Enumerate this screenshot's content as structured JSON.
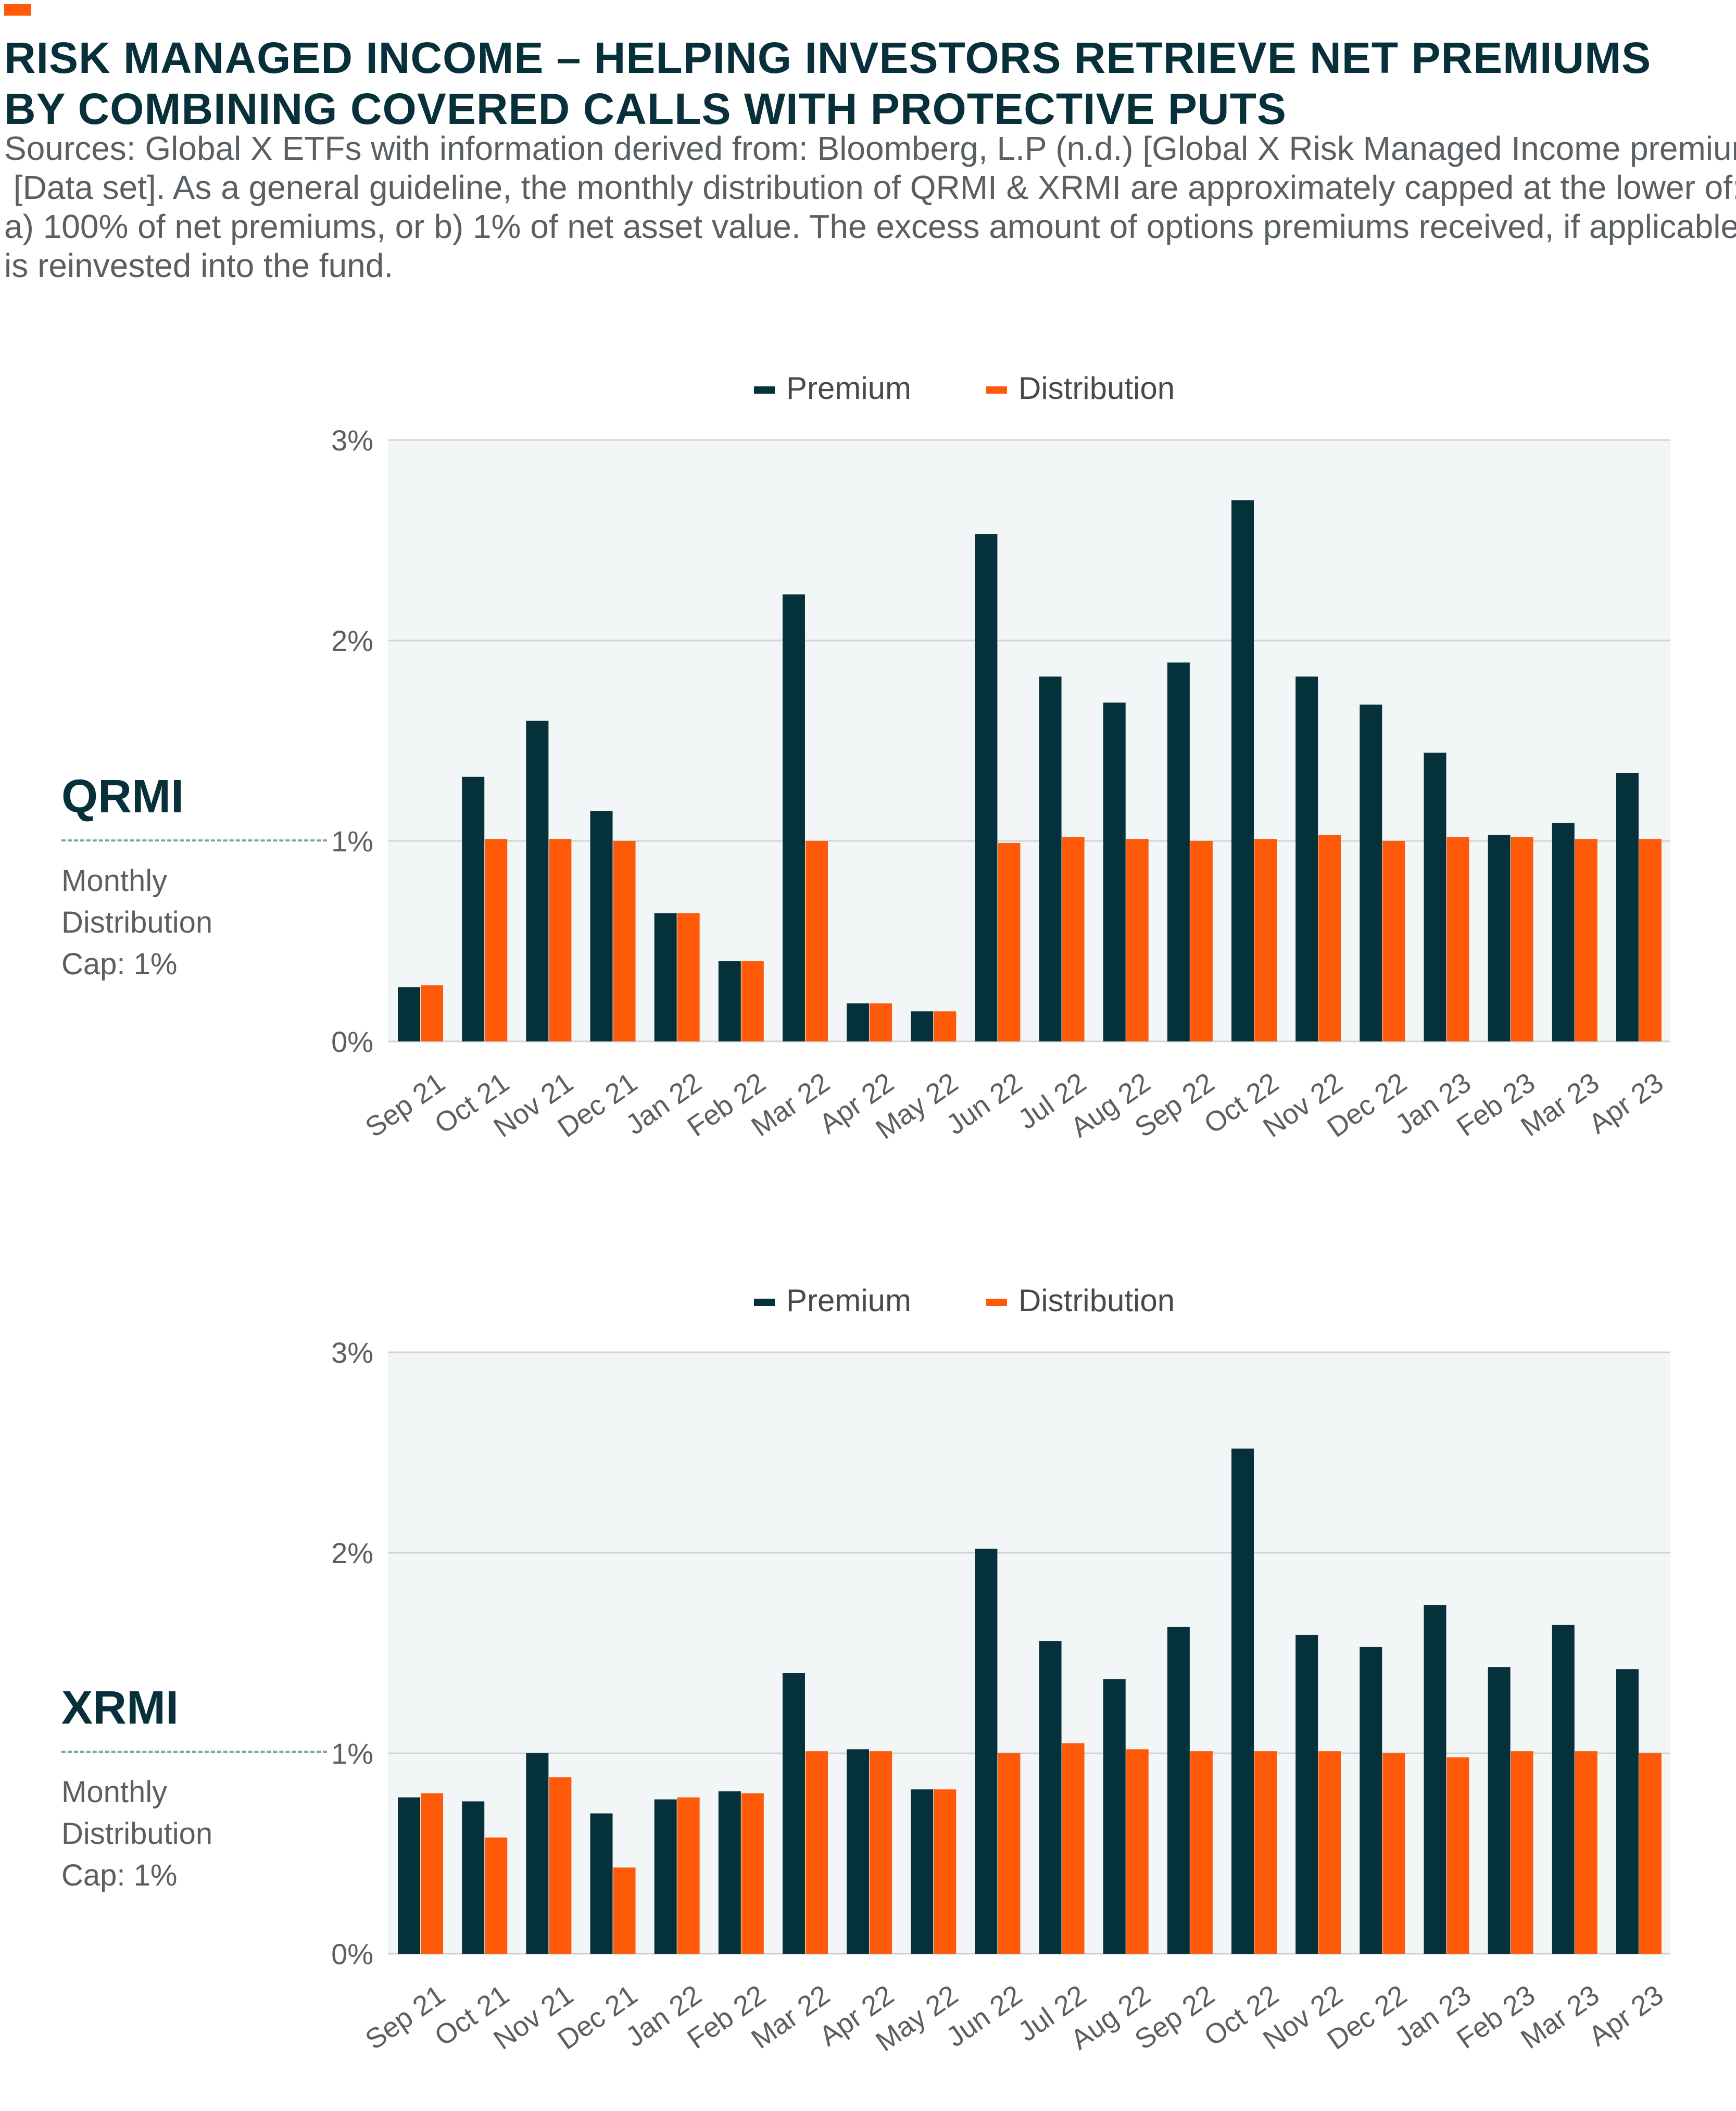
{
  "header": {
    "title_lines": [
      "RISK MANAGED INCOME – HELPING INVESTORS RETRIEVE NET PREMIUMS",
      "BY COMBINING COVERED CALLS WITH PROTECTIVE PUTS"
    ],
    "sources_lines": [
      "Sources: Global X ETFs with information derived from: Bloomberg, L.P (n.d.) [Global X Risk Managed Income premiums]",
      " [Data set]. As a general guideline, the monthly distribution of QRMI & XRMI are approximately capped at the lower of:",
      "a) 100% of net premiums, or b) 1% of net asset value. The excess amount of options premiums received, if applicable,",
      "is reinvested into the fund."
    ]
  },
  "colors": {
    "premium": "#05313b",
    "distribution": "#ff5a0a",
    "accent": "#ff5a0a",
    "plot_background": "#f2f6f7",
    "gridline": "#cfd4d6"
  },
  "panels": [
    {
      "name": "QRMI",
      "note_lines": [
        "Monthly",
        "Distribution",
        "Cap: 1%"
      ]
    },
    {
      "name": "XRMI",
      "note_lines": [
        "Monthly",
        "Distribution",
        "Cap: 1%"
      ]
    }
  ],
  "chart_data": [
    {
      "type": "bar",
      "categories": [
        "Sep 21",
        "Oct 21",
        "Nov 21",
        "Dec 21",
        "Jan 22",
        "Feb 22",
        "Mar 22",
        "Apr 22",
        "May 22",
        "Jun 22",
        "Jul 22",
        "Aug 22",
        "Sep 22",
        "Oct 22",
        "Nov 22",
        "Dec 22",
        "Jan 23",
        "Feb 23",
        "Mar 23",
        "Apr 23"
      ],
      "series": [
        {
          "name": "Premium",
          "values": [
            0.27,
            1.32,
            1.6,
            1.15,
            0.64,
            0.4,
            2.23,
            0.19,
            0.15,
            2.53,
            1.82,
            1.69,
            1.89,
            2.7,
            1.82,
            1.68,
            1.44,
            1.03,
            1.09,
            1.34
          ]
        },
        {
          "name": "Distribution",
          "values": [
            0.28,
            1.01,
            1.01,
            1.0,
            0.64,
            0.4,
            1.0,
            0.19,
            0.15,
            0.99,
            1.02,
            1.01,
            1.0,
            1.01,
            1.03,
            1.0,
            1.02,
            1.02,
            1.01,
            1.01
          ]
        }
      ],
      "ylim": [
        0,
        3
      ],
      "yticks": [
        "0%",
        "1%",
        "2%",
        "3%"
      ],
      "grid": true,
      "legend_position": "top-center"
    },
    {
      "type": "bar",
      "categories": [
        "Sep 21",
        "Oct 21",
        "Nov 21",
        "Dec 21",
        "Jan 22",
        "Feb 22",
        "Mar 22",
        "Apr 22",
        "May 22",
        "Jun 22",
        "Jul 22",
        "Aug 22",
        "Sep 22",
        "Oct 22",
        "Nov 22",
        "Dec 22",
        "Jan 23",
        "Feb 23",
        "Mar 23",
        "Apr 23"
      ],
      "series": [
        {
          "name": "Premium",
          "values": [
            0.78,
            0.76,
            1.0,
            0.7,
            0.77,
            0.81,
            1.4,
            1.02,
            0.82,
            2.02,
            1.56,
            1.37,
            1.63,
            2.52,
            1.59,
            1.53,
            1.74,
            1.43,
            1.64,
            1.42
          ]
        },
        {
          "name": "Distribution",
          "values": [
            0.8,
            0.58,
            0.88,
            0.43,
            0.78,
            0.8,
            1.01,
            1.01,
            0.82,
            1.0,
            1.05,
            1.02,
            1.01,
            1.01,
            1.01,
            1.0,
            0.98,
            1.01,
            1.01,
            1.0
          ]
        }
      ],
      "ylim": [
        0,
        3
      ],
      "yticks": [
        "0%",
        "1%",
        "2%",
        "3%"
      ],
      "grid": true,
      "legend_position": "top-center"
    }
  ]
}
